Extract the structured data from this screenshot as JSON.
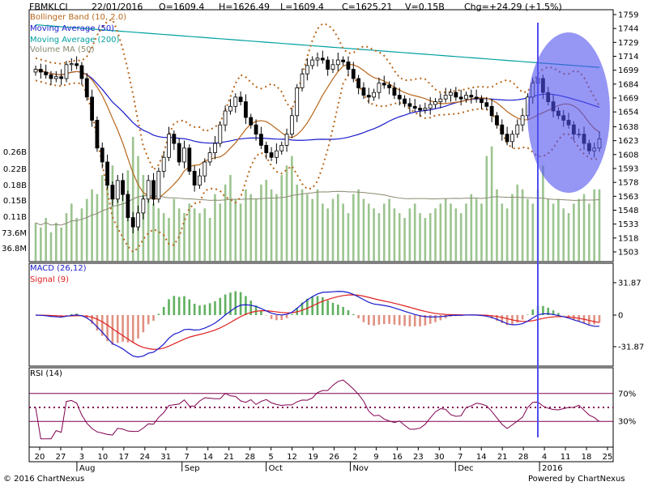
{
  "header": {
    "symbol": "FBMKLCI",
    "date": "22/01/2016",
    "open": "O=1609.4",
    "high": "H=1626.49",
    "low": "L=1609.4",
    "close": "C=1625.21",
    "volume": "V=0.15B",
    "change": "Chg=+24.29 (+1.5%)"
  },
  "footer": {
    "copyright": "© 2016 ChartNexus",
    "powered": "Powered by ChartNexus"
  },
  "colors": {
    "up_candle": "#ffffff",
    "down_candle": "#000000",
    "bollinger": "#b8661a",
    "ma50": "#1a1acc",
    "ma200": "#00a0a0",
    "volume_ma": "#8a8a70",
    "volume_bar": "#9cc490",
    "macd": "#1a1acc",
    "signal": "#e02020",
    "hist_pos": "#60b060",
    "hist_neg": "#e09080",
    "rsi": "#800050",
    "highlight": "#5050ee"
  },
  "chart_data": [
    {
      "type": "candlestick",
      "title": "FBMKLCI",
      "legend": [
        "Bollinger Band (10, 2.0)",
        "Moving Average (50)",
        "Moving Average (200)",
        "Volume MA (50)"
      ],
      "price_ticks": [
        "1759",
        "1744",
        "1729",
        "1714",
        "1699",
        "1684",
        "1669",
        "1654",
        "1638",
        "1623",
        "1608",
        "1593",
        "1578",
        "1563",
        "1548",
        "1533",
        "1518",
        "1503"
      ],
      "volume_ticks": [
        "0.26B",
        "0.22B",
        "0.18B",
        "0.15B",
        "0.11B",
        "73.6M",
        "36.8M"
      ],
      "ylim": [
        1503,
        1759
      ],
      "x_tick_labels": [
        "20",
        "27",
        "3",
        "10",
        "17",
        "24",
        "31",
        "7",
        "14",
        "21",
        "28",
        "5",
        "12",
        "19",
        "26",
        "2",
        "9",
        "16",
        "23",
        "30",
        "7",
        "14",
        "21",
        "28",
        "4",
        "11",
        "18",
        "25"
      ],
      "month_labels": [
        "Aug",
        "Sep",
        "Oct",
        "Nov",
        "Dec",
        "2016"
      ],
      "close_series": [
        1700,
        1697,
        1694,
        1690,
        1692,
        1690,
        1705,
        1706,
        1704,
        1690,
        1670,
        1645,
        1615,
        1600,
        1575,
        1560,
        1580,
        1565,
        1540,
        1530,
        1545,
        1560,
        1580,
        1560,
        1590,
        1605,
        1630,
        1620,
        1600,
        1615,
        1590,
        1575,
        1585,
        1600,
        1610,
        1620,
        1640,
        1655,
        1660,
        1670,
        1665,
        1648,
        1640,
        1630,
        1618,
        1610,
        1605,
        1612,
        1618,
        1630,
        1650,
        1680,
        1695,
        1704,
        1710,
        1712,
        1710,
        1700,
        1705,
        1710,
        1708,
        1700,
        1690,
        1680,
        1672,
        1670,
        1675,
        1685,
        1683,
        1680,
        1672,
        1668,
        1663,
        1660,
        1658,
        1656,
        1658,
        1662,
        1665,
        1668,
        1672,
        1675,
        1670,
        1668,
        1672,
        1670,
        1668,
        1664,
        1660,
        1650,
        1640,
        1630,
        1622,
        1630,
        1640,
        1650,
        1670,
        1685,
        1690,
        1675,
        1665,
        1655,
        1650,
        1645,
        1640,
        1630,
        1630,
        1620,
        1612,
        1615,
        1625
      ],
      "volume_series_b": [
        0.08,
        0.07,
        0.09,
        0.06,
        0.08,
        0.07,
        0.1,
        0.12,
        0.09,
        0.11,
        0.13,
        0.15,
        0.14,
        0.18,
        0.16,
        0.2,
        0.15,
        0.17,
        0.19,
        0.26,
        0.22,
        0.18,
        0.15,
        0.12,
        0.11,
        0.1,
        0.09,
        0.13,
        0.11,
        0.1,
        0.12,
        0.11,
        0.1,
        0.11,
        0.09,
        0.14,
        0.12,
        0.16,
        0.18,
        0.13,
        0.12,
        0.15,
        0.14,
        0.13,
        0.16,
        0.17,
        0.15,
        0.14,
        0.18,
        0.2,
        0.22,
        0.16,
        0.15,
        0.14,
        0.13,
        0.15,
        0.12,
        0.11,
        0.13,
        0.14,
        0.12,
        0.1,
        0.14,
        0.15,
        0.13,
        0.12,
        0.11,
        0.1,
        0.12,
        0.13,
        0.11,
        0.1,
        0.09,
        0.11,
        0.12,
        0.1,
        0.09,
        0.1,
        0.11,
        0.12,
        0.13,
        0.12,
        0.11,
        0.1,
        0.12,
        0.14,
        0.13,
        0.12,
        0.22,
        0.24,
        0.15,
        0.12,
        0.11,
        0.14,
        0.16,
        0.15,
        0.13,
        0.12,
        0.15,
        0.2,
        0.13,
        0.12,
        0.13,
        0.11,
        0.1,
        0.12,
        0.13,
        0.14,
        0.12,
        0.15,
        0.15
      ]
    },
    {
      "type": "line",
      "title": "MACD (26,12)",
      "series": [
        {
          "name": "MACD (26,12)"
        },
        {
          "name": "Signal (9)"
        }
      ],
      "y_ticks": [
        "31.87",
        "0",
        "-31.87"
      ],
      "ylim": [
        -50,
        50
      ]
    },
    {
      "type": "line",
      "title": "RSI (14)",
      "series": [
        {
          "name": "RSI (14)"
        }
      ],
      "y_ticks": [
        "70%",
        "30%"
      ],
      "ylim": [
        0,
        100
      ]
    }
  ]
}
